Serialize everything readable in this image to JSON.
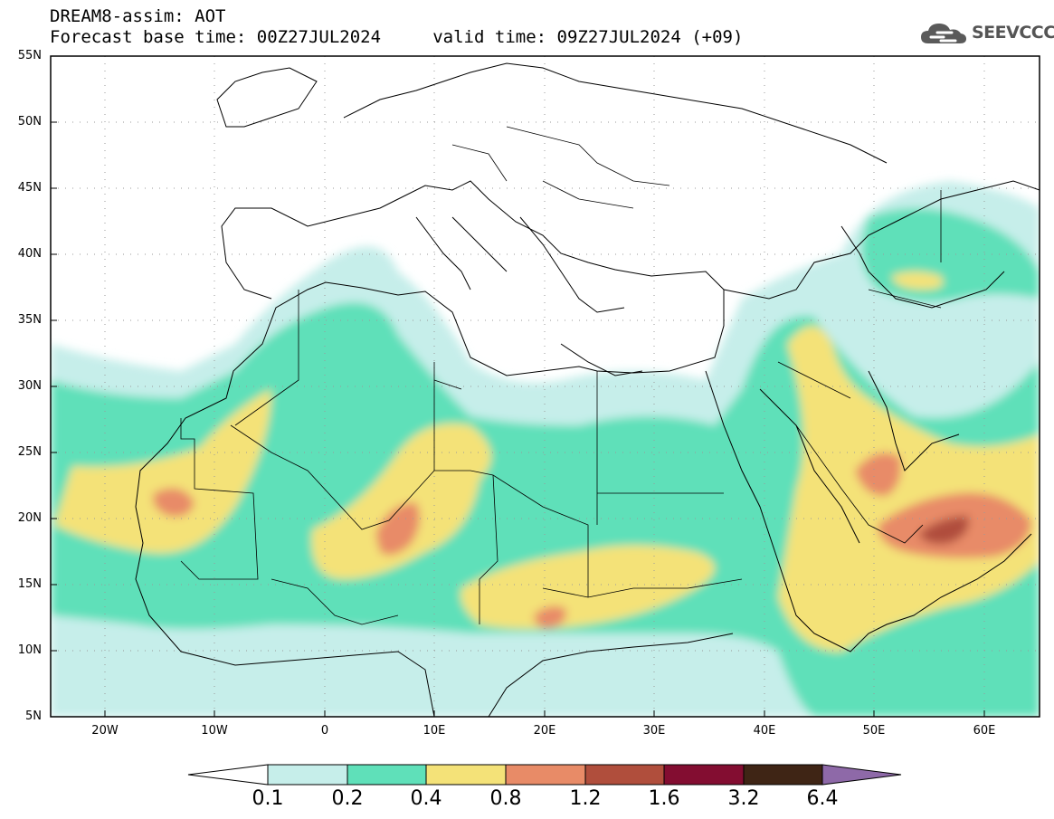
{
  "header": {
    "line1": "DREAM8-assim: AOT",
    "line2": "Forecast base time: 00Z27JUL2024     valid time: 09Z27JUL2024 (+09)"
  },
  "logo": {
    "text": "SEEVCCC",
    "icon": "cloud-icon"
  },
  "map": {
    "lon_range": [
      -25,
      65
    ],
    "lat_range": [
      5,
      55
    ],
    "lat_ticks": [
      "55N",
      "50N",
      "45N",
      "40N",
      "35N",
      "30N",
      "25N",
      "20N",
      "15N",
      "10N",
      "5N"
    ],
    "lon_ticks": [
      "20W",
      "10W",
      "0",
      "10E",
      "20E",
      "30E",
      "40E",
      "50E",
      "60E"
    ],
    "grid": true
  },
  "colorbar": {
    "labels": [
      "0.1",
      "0.2",
      "0.4",
      "0.8",
      "1.2",
      "1.6",
      "3.2",
      "6.4"
    ],
    "colors": [
      "#c6eeea",
      "#5fe0b9",
      "#f4e278",
      "#e88b67",
      "#b04e3c",
      "#830d31",
      "#3f2515",
      "#8e69a8"
    ],
    "extend": "both"
  }
}
